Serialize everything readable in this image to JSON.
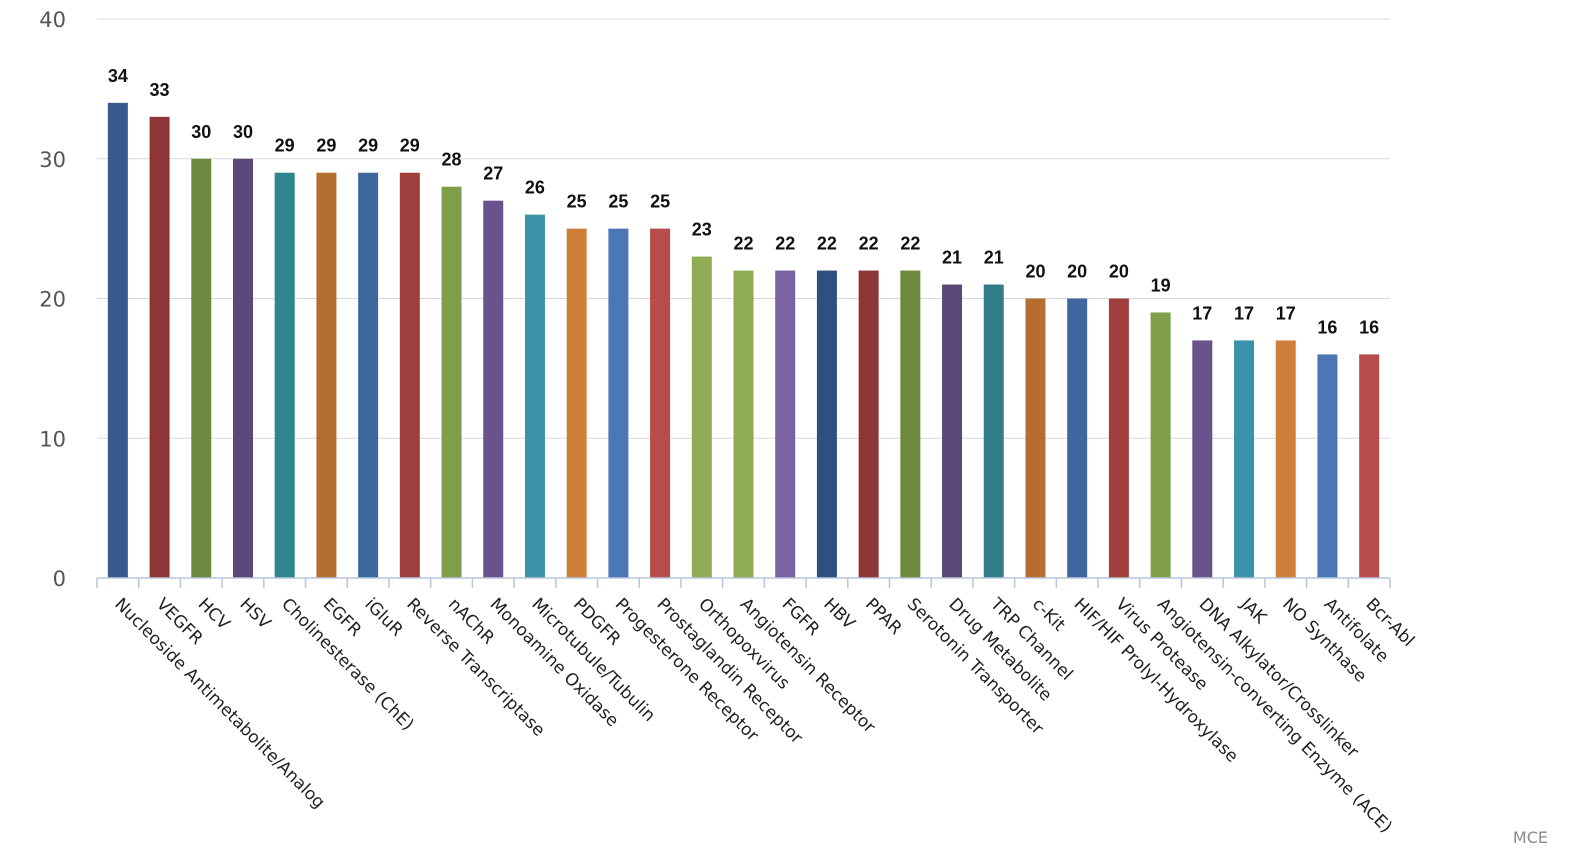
{
  "chart_data": {
    "type": "bar",
    "title": "",
    "xlabel": "",
    "ylabel": "",
    "ylim": [
      0,
      40
    ],
    "yticks": [
      0,
      10,
      20,
      30,
      40
    ],
    "grid": true,
    "legend": "none",
    "data_labels": true,
    "categories": [
      "Nucleoside Antimetabolite/Analog",
      "VEGFR",
      "HCV",
      "HSV",
      "Cholinesterase (ChE)",
      "EGFR",
      "iGluR",
      "Reverse Transcriptase",
      "nAChR",
      "Monoamine Oxidase",
      "Microtubule/Tubulin",
      "PDGFR",
      "Progesterone Receptor",
      "Prostaglandin Receptor",
      "Orthopoxvirus",
      "Angiotensin Receptor",
      "FGFR",
      "HBV",
      "PPAR",
      "Serotonin Transporter",
      "Drug Metabolite",
      "TRP Channel",
      "c-Kit",
      "HIF/HIF Prolyl-Hydroxylase",
      "Virus Protease",
      "Angiotensin-converting Enzyme (ACE)",
      "DNA Alkylator/Crosslinker",
      "JAK",
      "NO Synthase",
      "Antifolate",
      "Bcr-Abl"
    ],
    "values": [
      34,
      33,
      30,
      30,
      29,
      29,
      29,
      29,
      28,
      27,
      26,
      25,
      25,
      25,
      23,
      22,
      22,
      22,
      22,
      22,
      21,
      21,
      20,
      20,
      20,
      19,
      17,
      17,
      17,
      16,
      16
    ],
    "colors": [
      "#365b8c",
      "#8e3535",
      "#6c8a3e",
      "#5c4779",
      "#2f8590",
      "#b66d30",
      "#3e67a0",
      "#a13e3e",
      "#7f9e49",
      "#6a528c",
      "#3a93a8",
      "#d07f38",
      "#4b78b5",
      "#b84c4c",
      "#8fac52",
      "#8fac52",
      "#7b62a3",
      "#2f4f80",
      "#8e3535",
      "#6c8a3e",
      "#5c4779",
      "#2f7e8a",
      "#b66d30",
      "#3e67a0",
      "#a13e3e",
      "#7f9e49",
      "#6a528c",
      "#3a93a8",
      "#d07f38",
      "#4b78b5",
      "#b84c4c"
    ]
  },
  "watermark": "MCE"
}
